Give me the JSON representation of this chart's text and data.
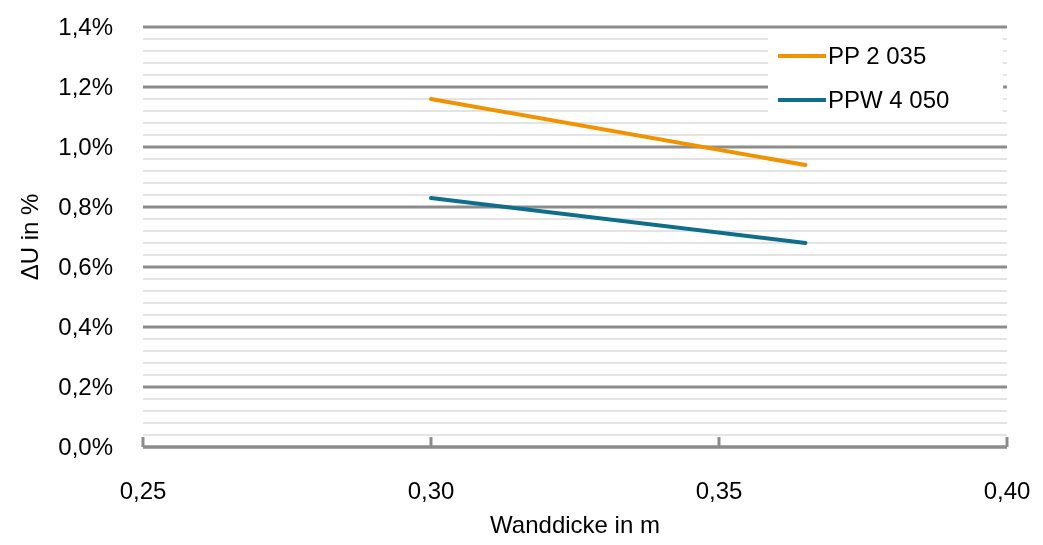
{
  "chart_data": {
    "type": "line",
    "xlabel": "Wanddicke in m",
    "ylabel": "ΔU in %",
    "xlim": [
      0.25,
      0.4
    ],
    "xticks": [
      {
        "value": 0.25,
        "label": "0,25"
      },
      {
        "value": 0.3,
        "label": "0,30"
      },
      {
        "value": 0.35,
        "label": "0,35"
      },
      {
        "value": 0.4,
        "label": "0,40"
      }
    ],
    "ylim": [
      0,
      1.4
    ],
    "yticks": [
      {
        "value": 0,
        "label": "0,0%"
      },
      {
        "value": 0.04,
        "label": null
      },
      {
        "value": 0.08,
        "label": null
      },
      {
        "value": 0.12,
        "label": null
      },
      {
        "value": 0.16,
        "label": null
      },
      {
        "value": 0.2,
        "label": "0,2%"
      },
      {
        "value": 0.24,
        "label": null
      },
      {
        "value": 0.28,
        "label": null
      },
      {
        "value": 0.32,
        "label": null
      },
      {
        "value": 0.36,
        "label": null
      },
      {
        "value": 0.4,
        "label": "0,4%"
      },
      {
        "value": 0.44,
        "label": null
      },
      {
        "value": 0.48,
        "label": null
      },
      {
        "value": 0.52,
        "label": null
      },
      {
        "value": 0.56,
        "label": null
      },
      {
        "value": 0.6,
        "label": "0,6%"
      },
      {
        "value": 0.64,
        "label": null
      },
      {
        "value": 0.68,
        "label": null
      },
      {
        "value": 0.72,
        "label": null
      },
      {
        "value": 0.76,
        "label": null
      },
      {
        "value": 0.8,
        "label": "0,8%"
      },
      {
        "value": 0.84,
        "label": null
      },
      {
        "value": 0.88,
        "label": null
      },
      {
        "value": 0.92,
        "label": null
      },
      {
        "value": 0.96,
        "label": null
      },
      {
        "value": 1.0,
        "label": "1,0%"
      },
      {
        "value": 1.04,
        "label": null
      },
      {
        "value": 1.08,
        "label": null
      },
      {
        "value": 1.12,
        "label": null
      },
      {
        "value": 1.16,
        "label": null
      },
      {
        "value": 1.2,
        "label": "1,2%"
      },
      {
        "value": 1.24,
        "label": null
      },
      {
        "value": 1.28,
        "label": null
      },
      {
        "value": 1.32,
        "label": null
      },
      {
        "value": 1.36,
        "label": null
      },
      {
        "value": 1.4,
        "label": "1,4%"
      }
    ],
    "x": [
      0.3,
      0.365
    ],
    "series": [
      {
        "name": "PP 2 035",
        "color": "#f39200",
        "values": [
          1.16,
          0.94
        ]
      },
      {
        "name": "PPW 4 050",
        "color": "#0e6e8c",
        "values": [
          0.83,
          0.68
        ]
      }
    ],
    "grid": "y",
    "legend": "top right",
    "marker": "none",
    "line_style": "solid"
  }
}
